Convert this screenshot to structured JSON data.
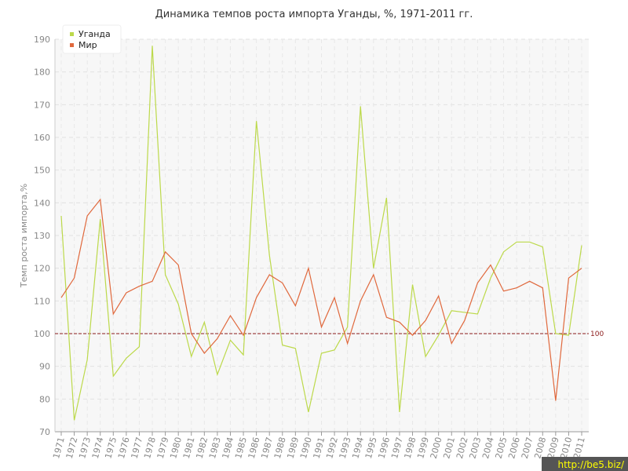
{
  "chart_data": {
    "type": "line",
    "title": "Динамика темпов роста импорта Уганды, %, 1971-2011 гг.",
    "y_label": "Темп роста импорта,%",
    "categories": [
      "1971",
      "1972",
      "1973",
      "1974",
      "1975",
      "1976",
      "1977",
      "1978",
      "1979",
      "1980",
      "1981",
      "1982",
      "1983",
      "1984",
      "1985",
      "1986",
      "1987",
      "1988",
      "1989",
      "1990",
      "1991",
      "1992",
      "1993",
      "1994",
      "1995",
      "1996",
      "1997",
      "1998",
      "1999",
      "2000",
      "2001",
      "2002",
      "2003",
      "2004",
      "2005",
      "2006",
      "2007",
      "2008",
      "2009",
      "2010",
      "2011"
    ],
    "series": [
      {
        "name": "Уганда",
        "color": "#bcd94a",
        "values": [
          136,
          73.5,
          92,
          135,
          87,
          92.5,
          96,
          188,
          118,
          109,
          93,
          103.5,
          87.5,
          98,
          93.5,
          165,
          124,
          96.5,
          95.5,
          76,
          94,
          95,
          102,
          169.5,
          120,
          141.5,
          76,
          115,
          93,
          99.5,
          107,
          106.5,
          106,
          117,
          125,
          128,
          128,
          126.5,
          100,
          99.5,
          127
        ]
      },
      {
        "name": "Мир",
        "color": "#e0683c",
        "values": [
          111,
          117,
          136,
          141,
          106,
          112.5,
          114.5,
          116,
          125,
          121,
          100,
          94,
          98.5,
          105.5,
          99.5,
          111,
          118,
          115.5,
          108.5,
          120,
          102,
          111,
          97,
          110,
          118,
          105,
          103.5,
          99.5,
          104,
          111.5,
          97,
          104,
          115.5,
          121,
          113,
          114,
          116,
          114,
          79.5,
          117,
          120
        ]
      }
    ],
    "ylim": [
      70,
      190
    ],
    "yticks": [
      70,
      80,
      90,
      100,
      110,
      120,
      130,
      140,
      150,
      160,
      170,
      180,
      190
    ],
    "grid": true,
    "legend": "top-left",
    "reference_line": 100,
    "watermark": "http://be5.biz/"
  }
}
